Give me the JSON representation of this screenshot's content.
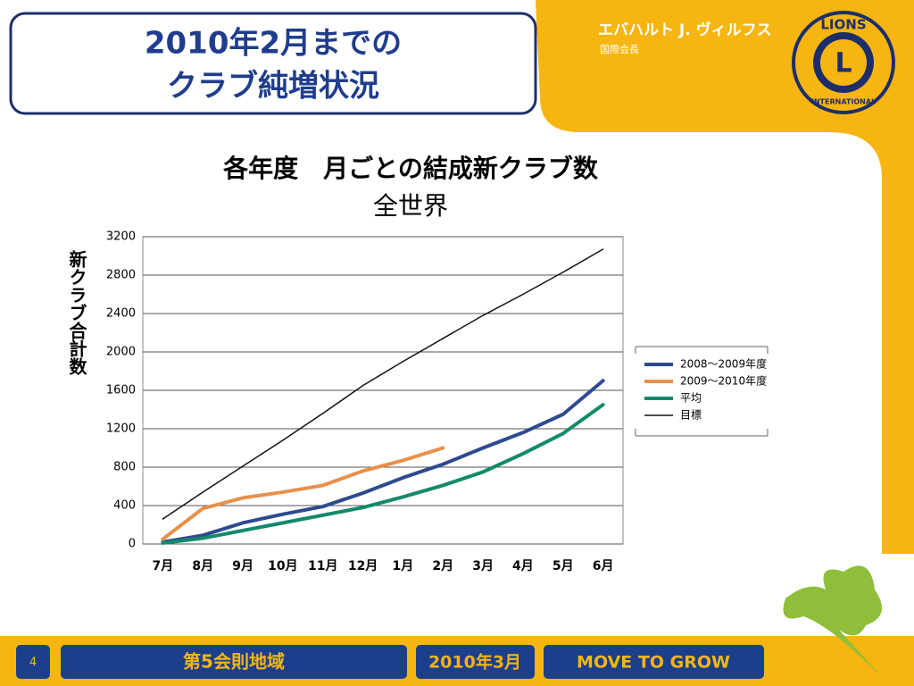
{
  "slide": {
    "title_line1": "2010年2月までの",
    "title_line2": "クラブ純増状況",
    "speaker": "エバハルト J. ヴィルフス",
    "speaker_role": "国際会長",
    "logo_top": "LIONS",
    "logo_center": "L",
    "logo_bottom": "INTERNATIONAL",
    "page_number": "4",
    "region": "第5会則地域",
    "date": "2010年3月",
    "slogan": "MOVE TO GROW"
  },
  "chart_data": {
    "type": "line",
    "title": "各年度　月ごとの結成新クラブ数",
    "subtitle": "全世界",
    "y_label": "新クラブ合計数",
    "categories": [
      "7月",
      "8月",
      "9月",
      "10月",
      "11月",
      "12月",
      "1月",
      "2月",
      "3月",
      "4月",
      "5月",
      "6月"
    ],
    "series": [
      {
        "name": "2008～2009年度",
        "color": "#2e4a8f",
        "width": 4,
        "values": [
          20,
          90,
          220,
          310,
          390,
          530,
          690,
          830,
          1000,
          1160,
          1350,
          1700
        ]
      },
      {
        "name": "2009～2010年度",
        "color": "#e8904a",
        "width": 4,
        "values": [
          50,
          370,
          480,
          540,
          610,
          760,
          870,
          1000,
          null,
          null,
          null,
          null
        ]
      },
      {
        "name": "平均",
        "color": "#128a6a",
        "width": 4,
        "values": [
          10,
          60,
          140,
          220,
          300,
          380,
          490,
          610,
          750,
          940,
          1150,
          1450
        ]
      },
      {
        "name": "目標",
        "color": "#111111",
        "width": 1.5,
        "values": [
          260,
          540,
          810,
          1080,
          1360,
          1650,
          1900,
          2140,
          2380,
          2600,
          2830,
          3070
        ]
      }
    ],
    "ylim": [
      0,
      3200
    ],
    "yticks": [
      0,
      400,
      800,
      1200,
      1600,
      2000,
      2400,
      2800,
      3200
    ],
    "grid": true,
    "legend": "right"
  }
}
